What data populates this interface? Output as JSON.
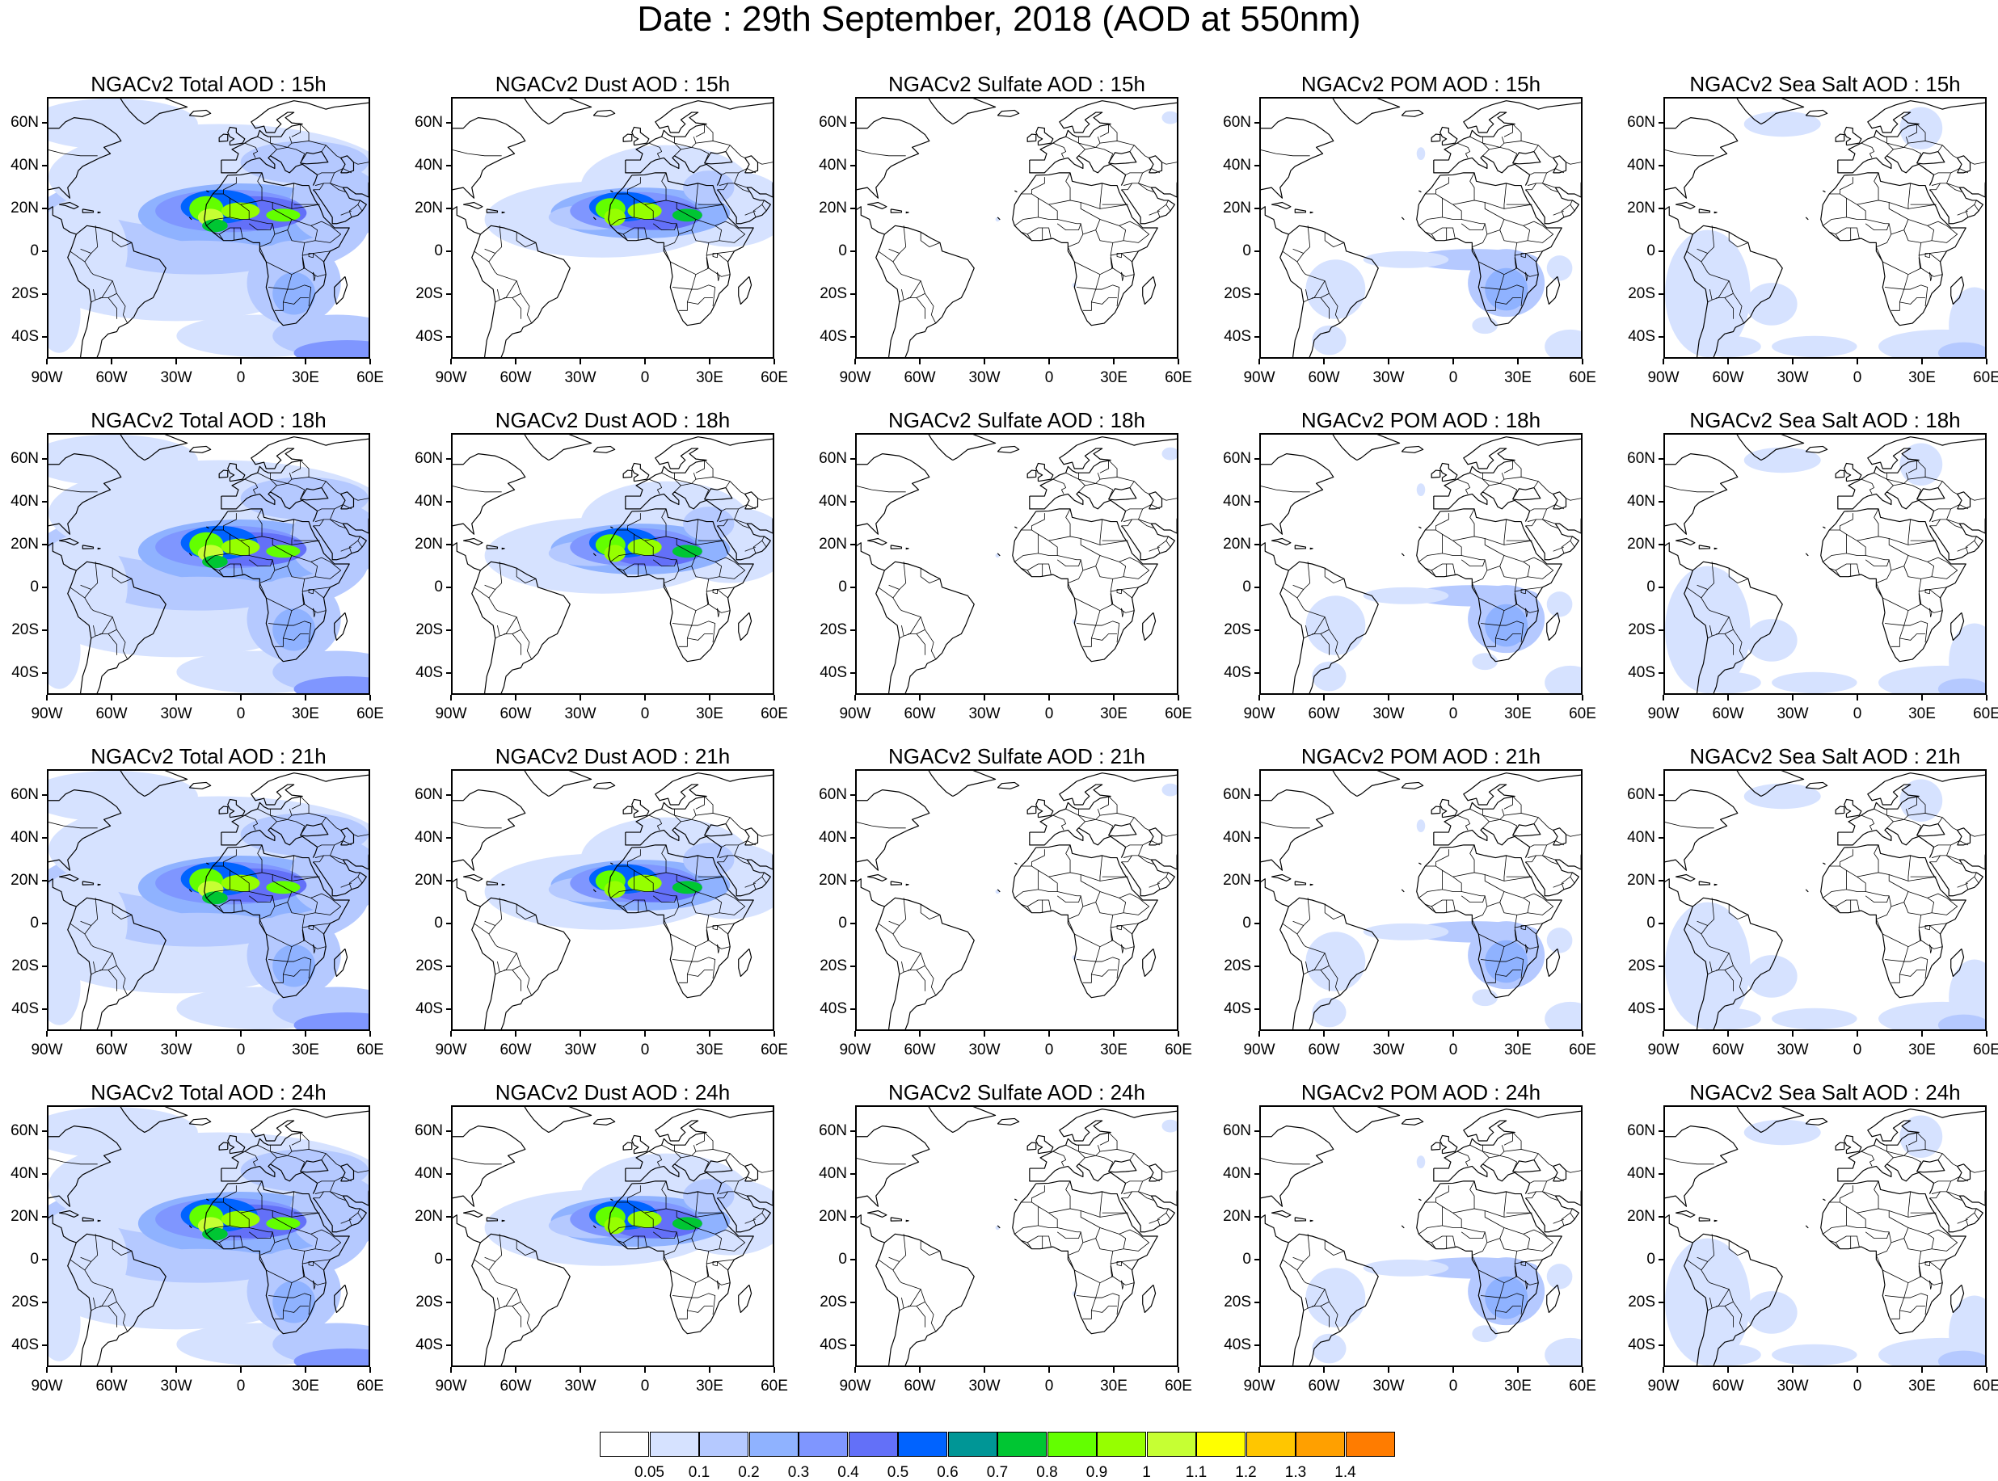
{
  "title": "Date : 29th September, 2018 (AOD at 550nm)",
  "panels": [
    {
      "title": "NGACv2 Total AOD : 15h",
      "species": "total"
    },
    {
      "title": "NGACv2 Dust AOD : 15h",
      "species": "dust"
    },
    {
      "title": "NGACv2 Sulfate AOD : 15h",
      "species": "sulfate"
    },
    {
      "title": "NGACv2 POM AOD : 15h",
      "species": "pom"
    },
    {
      "title": "NGACv2 Sea Salt AOD : 15h",
      "species": "seasalt"
    },
    {
      "title": "NGACv2 Total AOD : 18h",
      "species": "total"
    },
    {
      "title": "NGACv2 Dust AOD : 18h",
      "species": "dust"
    },
    {
      "title": "NGACv2 Sulfate AOD : 18h",
      "species": "sulfate"
    },
    {
      "title": "NGACv2 POM AOD : 18h",
      "species": "pom"
    },
    {
      "title": "NGACv2 Sea Salt AOD : 18h",
      "species": "seasalt"
    },
    {
      "title": "NGACv2 Total AOD : 21h",
      "species": "total"
    },
    {
      "title": "NGACv2 Dust AOD : 21h",
      "species": "dust"
    },
    {
      "title": "NGACv2 Sulfate AOD : 21h",
      "species": "sulfate"
    },
    {
      "title": "NGACv2 POM AOD : 21h",
      "species": "pom"
    },
    {
      "title": "NGACv2 Sea Salt AOD : 21h",
      "species": "seasalt"
    },
    {
      "title": "NGACv2 Total AOD : 24h",
      "species": "total"
    },
    {
      "title": "NGACv2 Dust AOD : 24h",
      "species": "dust"
    },
    {
      "title": "NGACv2 Sulfate AOD : 24h",
      "species": "sulfate"
    },
    {
      "title": "NGACv2 POM AOD : 24h",
      "species": "pom"
    },
    {
      "title": "NGACv2 Sea Salt  AOD : 24h",
      "species": "seasalt"
    }
  ],
  "lat_labels": [
    "60N",
    "40N",
    "20N",
    "0",
    "20S",
    "40S"
  ],
  "lon_labels": [
    "90W",
    "60W",
    "30W",
    "0",
    "30E",
    "60E"
  ],
  "map_extent": {
    "lon_range": [
      -90,
      60
    ],
    "lat_range": [
      -50,
      72
    ]
  },
  "colorbar": {
    "labels": [
      "0.05",
      "0.1",
      "0.2",
      "0.3",
      "0.4",
      "0.5",
      "0.6",
      "0.7",
      "0.8",
      "0.9",
      "1",
      "1.1",
      "1.2",
      "1.3",
      "1.4"
    ],
    "colors": [
      "#ffffff",
      "#d6e2ff",
      "#b5c9ff",
      "#8fb2ff",
      "#7f96ff",
      "#6370f8",
      "#0063ff",
      "#009696",
      "#00c633",
      "#63ff00",
      "#96ff00",
      "#c6ff33",
      "#ffff00",
      "#ffc600",
      "#ffa000",
      "#ff7c00",
      "#ff1900"
    ]
  }
}
